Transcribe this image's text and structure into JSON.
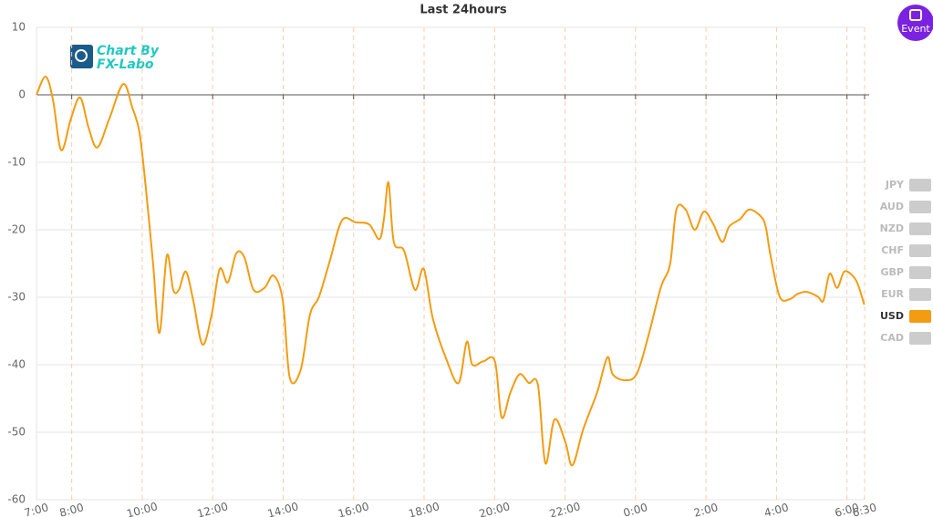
{
  "chart_data": {
    "type": "line",
    "title": "Last 24hours",
    "logo": [
      "Chart By",
      "FX-Labo"
    ],
    "event_button": "Event",
    "xlim": [
      0,
      23.5
    ],
    "xticks": [
      {
        "value": 0,
        "label": "7:00"
      },
      {
        "value": 1,
        "label": "8:00"
      },
      {
        "value": 3,
        "label": "10:00"
      },
      {
        "value": 5,
        "label": "12:00"
      },
      {
        "value": 7,
        "label": "14:00"
      },
      {
        "value": 9,
        "label": "16:00"
      },
      {
        "value": 11,
        "label": "18:00"
      },
      {
        "value": 13,
        "label": "20:00"
      },
      {
        "value": 15,
        "label": "22:00"
      },
      {
        "value": 17,
        "label": "0:00"
      },
      {
        "value": 19,
        "label": "2:00"
      },
      {
        "value": 21,
        "label": "4:00"
      },
      {
        "value": 23,
        "label": "6:00"
      },
      {
        "value": 23.5,
        "label": "6:30"
      }
    ],
    "ylim": [
      -60,
      10
    ],
    "yticks": [
      -60,
      -50,
      -40,
      -30,
      -20,
      -10,
      0,
      10
    ],
    "grid": true,
    "legend_items": [
      {
        "name": "JPY",
        "color": "#cccccc"
      },
      {
        "name": "AUD",
        "color": "#cccccc"
      },
      {
        "name": "NZD",
        "color": "#cccccc"
      },
      {
        "name": "CHF",
        "color": "#cccccc"
      },
      {
        "name": "GBP",
        "color": "#cccccc"
      },
      {
        "name": "EUR",
        "color": "#cccccc"
      },
      {
        "name": "USD",
        "color": "#f39c12"
      },
      {
        "name": "CAD",
        "color": "#cccccc"
      }
    ],
    "series": [
      {
        "name": "USD",
        "color": "#f39c12",
        "x": [
          0,
          0.26,
          0.47,
          0.7,
          0.98,
          1.24,
          1.48,
          1.73,
          2.07,
          2.46,
          2.72,
          2.92,
          3.1,
          3.31,
          3.49,
          3.7,
          3.88,
          4.04,
          4.24,
          4.45,
          4.71,
          4.97,
          5.2,
          5.43,
          5.67,
          5.9,
          6.16,
          6.47,
          6.73,
          6.99,
          7.19,
          7.5,
          7.76,
          8.02,
          8.33,
          8.67,
          9.06,
          9.44,
          9.73,
          9.86,
          9.99,
          10.14,
          10.43,
          10.74,
          10.99,
          11.25,
          11.64,
          11.98,
          12.21,
          12.37,
          12.68,
          13.01,
          13.2,
          13.45,
          13.71,
          13.97,
          14.23,
          14.44,
          14.7,
          15.01,
          15.21,
          15.52,
          15.91,
          16.2,
          16.35,
          16.69,
          17.03,
          17.34,
          17.72,
          17.98,
          18.16,
          18.42,
          18.68,
          18.94,
          19.2,
          19.46,
          19.66,
          19.97,
          20.23,
          20.57,
          20.7,
          20.83,
          21.09,
          21.37,
          21.6,
          21.86,
          22.17,
          22.33,
          22.51,
          22.72,
          22.92,
          23.16,
          23.31,
          23.49
        ],
        "values": [
          0,
          2.7,
          -0.8,
          -8.2,
          -3.5,
          -0.4,
          -4.9,
          -7.8,
          -3.5,
          1.6,
          -1.9,
          -5.5,
          -13.6,
          -25.1,
          -35.3,
          -23.8,
          -28.9,
          -28.9,
          -26.2,
          -30.5,
          -37.0,
          -32.6,
          -25.8,
          -27.8,
          -23.5,
          -24.1,
          -28.9,
          -28.6,
          -26.8,
          -30.5,
          -42.0,
          -40.7,
          -32.6,
          -29.9,
          -24.5,
          -18.6,
          -18.9,
          -19.2,
          -21.4,
          -18.4,
          -13.0,
          -21.8,
          -23.1,
          -28.9,
          -25.8,
          -33.2,
          -39.3,
          -42.7,
          -36.6,
          -40.0,
          -39.5,
          -39.5,
          -47.8,
          -44.1,
          -41.4,
          -42.7,
          -43.0,
          -54.6,
          -48.1,
          -51.5,
          -54.9,
          -49.5,
          -44.1,
          -38.9,
          -41.4,
          -42.3,
          -41.4,
          -36.2,
          -28.5,
          -25.1,
          -17.0,
          -17.0,
          -20.0,
          -17.3,
          -19.1,
          -21.8,
          -19.5,
          -18.4,
          -17.0,
          -18.1,
          -19.7,
          -23.8,
          -29.9,
          -30.3,
          -29.5,
          -29.2,
          -29.9,
          -30.5,
          -26.5,
          -28.6,
          -26.2,
          -26.8,
          -28.1,
          -31.1
        ]
      }
    ]
  }
}
